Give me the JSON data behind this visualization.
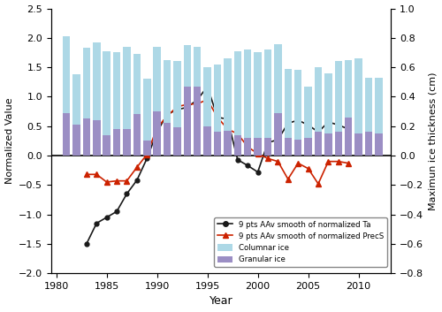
{
  "years": [
    1981,
    1982,
    1983,
    1984,
    1985,
    1986,
    1987,
    1988,
    1989,
    1990,
    1991,
    1992,
    1993,
    1994,
    1995,
    1996,
    1997,
    1998,
    1999,
    2000,
    2001,
    2002,
    2003,
    2004,
    2005,
    2006,
    2007,
    2008,
    2009,
    2010,
    2011,
    2012
  ],
  "columnar_ice": [
    0.81,
    0.55,
    0.73,
    0.77,
    0.71,
    0.7,
    0.74,
    0.69,
    0.52,
    0.74,
    0.65,
    0.64,
    0.75,
    0.74,
    0.6,
    0.62,
    0.66,
    0.71,
    0.72,
    0.7,
    0.72,
    0.76,
    0.59,
    0.58,
    0.47,
    0.6,
    0.56,
    0.64,
    0.65,
    0.66,
    0.53,
    0.53
  ],
  "granular_ice": [
    0.29,
    0.21,
    0.25,
    0.24,
    0.14,
    0.18,
    0.18,
    0.28,
    0.1,
    0.3,
    0.22,
    0.19,
    0.47,
    0.47,
    0.2,
    0.16,
    0.17,
    0.14,
    0.12,
    0.12,
    0.12,
    0.29,
    0.12,
    0.11,
    0.12,
    0.16,
    0.15,
    0.16,
    0.26,
    0.15,
    0.16,
    0.15
  ],
  "ta_smooth": [
    null,
    null,
    -1.5,
    -1.15,
    -1.05,
    -0.95,
    -0.65,
    -0.42,
    -0.05,
    0.4,
    0.7,
    0.78,
    0.82,
    0.95,
    1.17,
    0.65,
    0.62,
    -0.07,
    -0.17,
    -0.28,
    0.22,
    0.27,
    0.55,
    0.6,
    0.52,
    0.4,
    0.57,
    0.52,
    0.45,
    null,
    null,
    null
  ],
  "precs_smooth": [
    null,
    null,
    -0.32,
    -0.32,
    -0.45,
    -0.43,
    -0.43,
    -0.2,
    0.02,
    0.47,
    0.67,
    0.83,
    0.87,
    0.88,
    0.95,
    0.65,
    0.45,
    0.37,
    0.15,
    0.03,
    -0.05,
    -0.1,
    -0.4,
    -0.13,
    -0.22,
    -0.48,
    -0.1,
    -0.1,
    -0.13,
    null,
    null,
    null
  ],
  "columnar_color": "#add8e6",
  "granular_color": "#9b8ec4",
  "ta_color": "#1a1a1a",
  "precs_color": "#cc2200",
  "ylim_left": [
    -2.0,
    2.5
  ],
  "ylim_right": [
    -0.8,
    1.0
  ],
  "ylabel_left": "Normalized Value",
  "ylabel_right": "Maximun ice thickness (cm)",
  "xlabel": "Year",
  "legend_ta": "9 pts AAv smooth of normalized Ta",
  "legend_precs": "9 pts AAv smooth of normalized PrecS",
  "legend_columnar": "Columnar ice",
  "legend_granular": "Granular ice",
  "bar_width": 0.75,
  "yticks_left": [
    -2.0,
    -1.5,
    -1.0,
    -0.5,
    0.0,
    0.5,
    1.0,
    1.5,
    2.0,
    2.5
  ],
  "yticks_right": [
    -0.8,
    -0.6,
    -0.4,
    -0.2,
    0.0,
    0.2,
    0.4,
    0.6,
    0.8,
    1.0
  ],
  "xticks": [
    1980,
    1985,
    1990,
    1995,
    2000,
    2005,
    2010
  ]
}
